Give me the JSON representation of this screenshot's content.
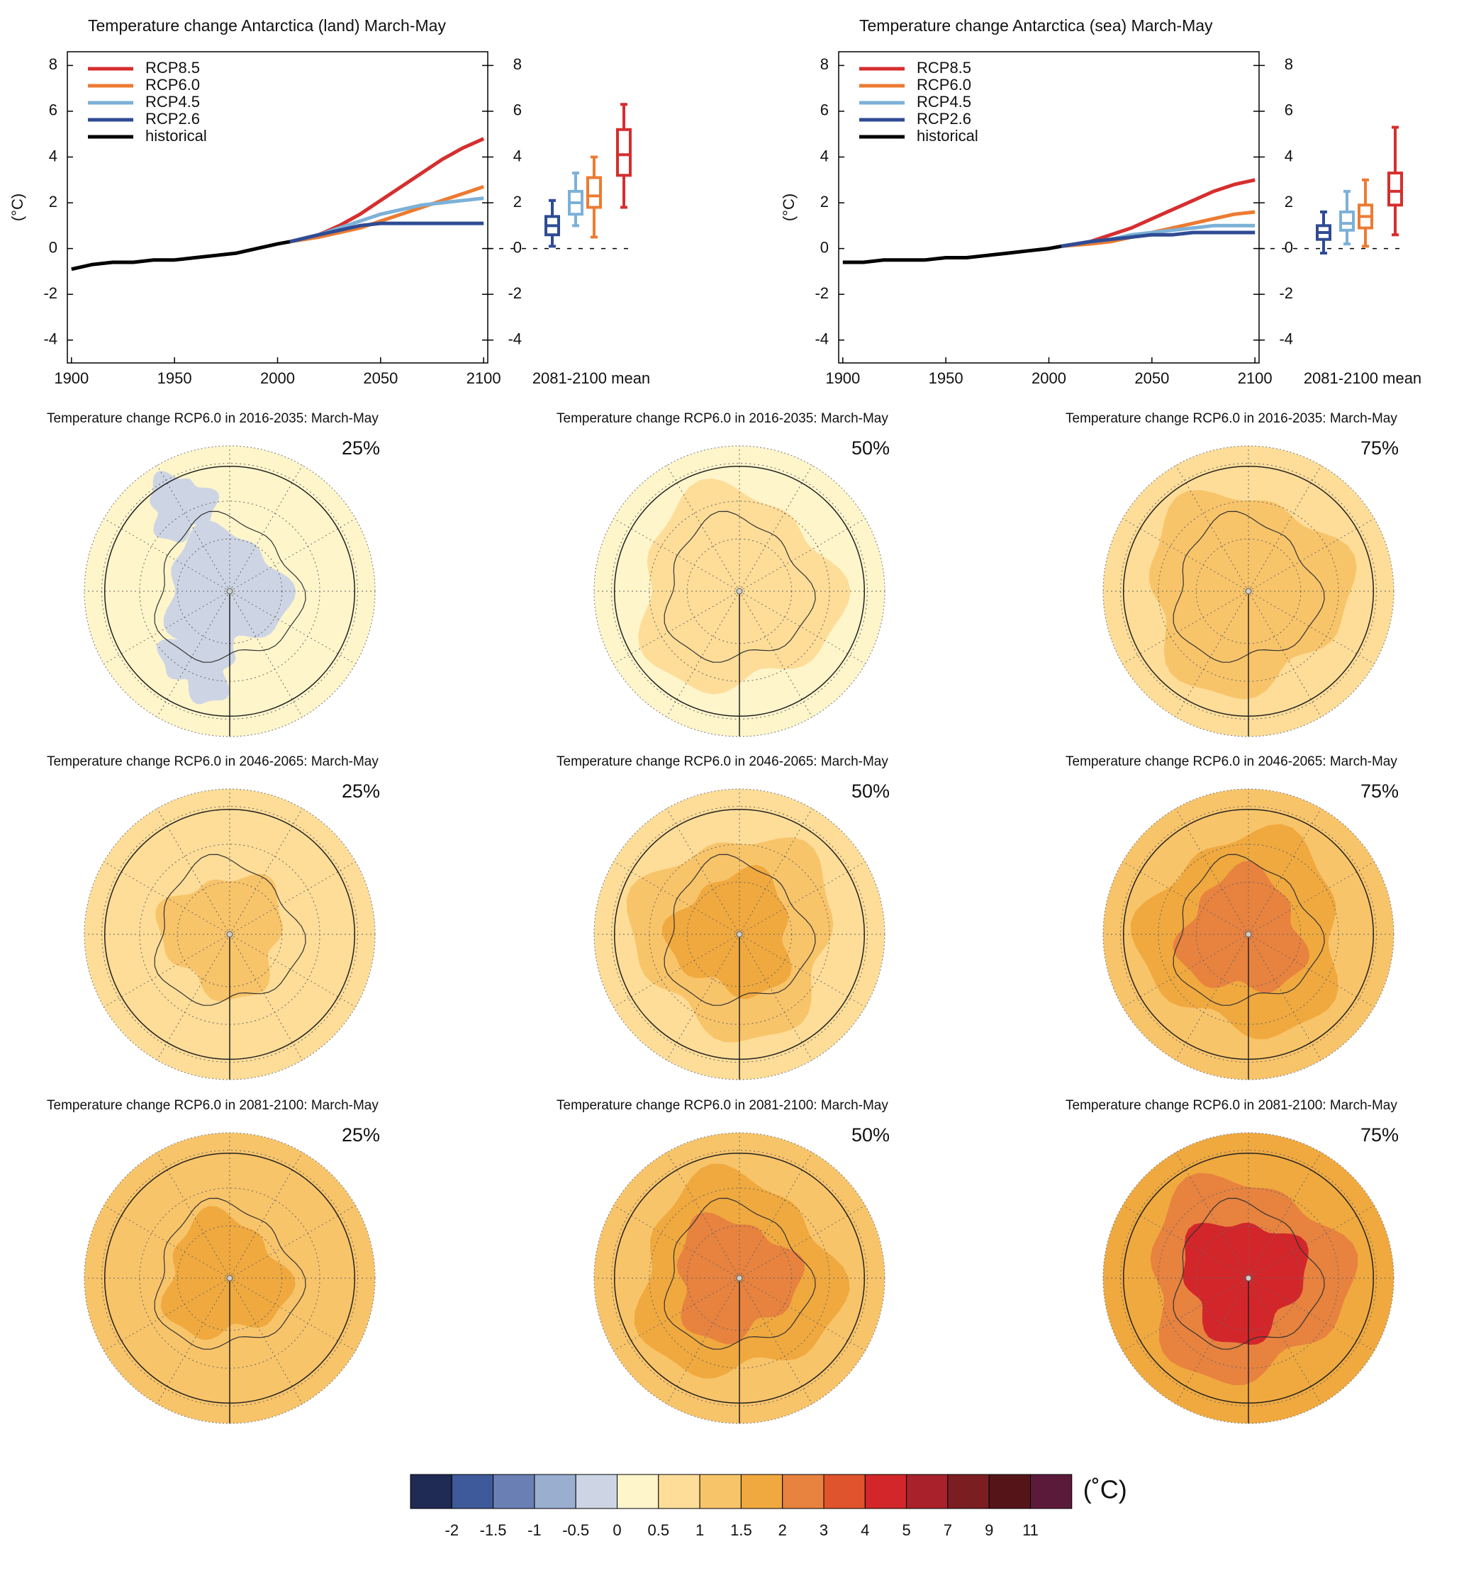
{
  "chart_data": [
    {
      "type": "line",
      "title": "Temperature change Antarctica (land) March-May",
      "y_label": "(°C)",
      "box_label": "2081-2100 mean",
      "x": [
        1900,
        1910,
        1920,
        1930,
        1940,
        1950,
        1960,
        1970,
        1980,
        1990,
        2000,
        2006,
        2020,
        2030,
        2040,
        2050,
        2060,
        2070,
        2080,
        2090,
        2100
      ],
      "xlim": [
        1898,
        2102
      ],
      "xticks": [
        1900,
        1950,
        2000,
        2050,
        2100
      ],
      "ylim": [
        -5,
        8.6
      ],
      "yticks": [
        -4,
        -2,
        0,
        2,
        4,
        6,
        8
      ],
      "y2lim": [
        -5,
        8.6
      ],
      "y2ticks": [
        -4,
        -2,
        0,
        2,
        4,
        6,
        8
      ],
      "series": [
        {
          "name": "RCP8.5",
          "color": "#d62e2e",
          "values": [
            null,
            null,
            null,
            null,
            null,
            null,
            null,
            null,
            null,
            null,
            null,
            0.3,
            0.6,
            1.0,
            1.5,
            2.1,
            2.7,
            3.3,
            3.9,
            4.4,
            4.8
          ]
        },
        {
          "name": "RCP6.0",
          "color": "#ec7b32",
          "values": [
            null,
            null,
            null,
            null,
            null,
            null,
            null,
            null,
            null,
            null,
            null,
            0.3,
            0.5,
            0.7,
            0.9,
            1.2,
            1.5,
            1.8,
            2.1,
            2.4,
            2.7
          ]
        },
        {
          "name": "RCP4.5",
          "color": "#7cb1d8",
          "values": [
            null,
            null,
            null,
            null,
            null,
            null,
            null,
            null,
            null,
            null,
            null,
            0.3,
            0.6,
            0.9,
            1.2,
            1.5,
            1.7,
            1.9,
            2.0,
            2.1,
            2.2
          ]
        },
        {
          "name": "RCP2.6",
          "color": "#2f4b94",
          "values": [
            null,
            null,
            null,
            null,
            null,
            null,
            null,
            null,
            null,
            null,
            null,
            0.3,
            0.6,
            0.8,
            1.0,
            1.1,
            1.1,
            1.1,
            1.1,
            1.1,
            1.1
          ]
        },
        {
          "name": "historical",
          "color": "#000000",
          "values": [
            -0.9,
            -0.7,
            -0.6,
            -0.6,
            -0.5,
            -0.5,
            -0.4,
            -0.3,
            -0.2,
            0.0,
            0.2,
            0.3,
            null,
            null,
            null,
            null,
            null,
            null,
            null,
            null,
            null
          ]
        }
      ],
      "boxes": {
        "colors": [
          "#2f4b94",
          "#7cb1d8",
          "#ec7b32",
          "#d62e2e"
        ],
        "lower": [
          0.1,
          1.0,
          0.5,
          1.8
        ],
        "q1": [
          0.6,
          1.5,
          1.8,
          3.2
        ],
        "median": [
          1.0,
          2.0,
          2.3,
          4.1
        ],
        "q3": [
          1.4,
          2.5,
          3.1,
          5.2
        ],
        "upper": [
          2.1,
          3.3,
          4.0,
          6.3
        ]
      }
    },
    {
      "type": "line",
      "title": "Temperature change Antarctica (sea) March-May",
      "y_label": "(°C)",
      "box_label": "2081-2100 mean",
      "x": [
        1900,
        1910,
        1920,
        1930,
        1940,
        1950,
        1960,
        1970,
        1980,
        1990,
        2000,
        2006,
        2020,
        2030,
        2040,
        2050,
        2060,
        2070,
        2080,
        2090,
        2100
      ],
      "xlim": [
        1898,
        2102
      ],
      "xticks": [
        1900,
        1950,
        2000,
        2050,
        2100
      ],
      "ylim": [
        -5,
        8.6
      ],
      "yticks": [
        -4,
        -2,
        0,
        2,
        4,
        6,
        8
      ],
      "y2lim": [
        -5,
        8.6
      ],
      "y2ticks": [
        -4,
        -2,
        0,
        2,
        4,
        6,
        8
      ],
      "series": [
        {
          "name": "RCP8.5",
          "color": "#d62e2e",
          "values": [
            null,
            null,
            null,
            null,
            null,
            null,
            null,
            null,
            null,
            null,
            null,
            0.1,
            0.3,
            0.6,
            0.9,
            1.3,
            1.7,
            2.1,
            2.5,
            2.8,
            3.0
          ]
        },
        {
          "name": "RCP6.0",
          "color": "#ec7b32",
          "values": [
            null,
            null,
            null,
            null,
            null,
            null,
            null,
            null,
            null,
            null,
            null,
            0.1,
            0.2,
            0.3,
            0.5,
            0.7,
            0.9,
            1.1,
            1.3,
            1.5,
            1.6
          ]
        },
        {
          "name": "RCP4.5",
          "color": "#7cb1d8",
          "values": [
            null,
            null,
            null,
            null,
            null,
            null,
            null,
            null,
            null,
            null,
            null,
            0.1,
            0.3,
            0.4,
            0.6,
            0.7,
            0.8,
            0.9,
            1.0,
            1.0,
            1.0
          ]
        },
        {
          "name": "RCP2.6",
          "color": "#2f4b94",
          "values": [
            null,
            null,
            null,
            null,
            null,
            null,
            null,
            null,
            null,
            null,
            null,
            0.1,
            0.3,
            0.4,
            0.5,
            0.6,
            0.6,
            0.7,
            0.7,
            0.7,
            0.7
          ]
        },
        {
          "name": "historical",
          "color": "#000000",
          "values": [
            -0.6,
            -0.6,
            -0.5,
            -0.5,
            -0.5,
            -0.4,
            -0.4,
            -0.3,
            -0.2,
            -0.1,
            0.0,
            0.1,
            null,
            null,
            null,
            null,
            null,
            null,
            null,
            null,
            null
          ]
        }
      ],
      "boxes": {
        "colors": [
          "#2f4b94",
          "#7cb1d8",
          "#ec7b32",
          "#d62e2e"
        ],
        "lower": [
          -0.2,
          0.2,
          0.1,
          0.6
        ],
        "q1": [
          0.4,
          0.8,
          0.9,
          1.9
        ],
        "median": [
          0.7,
          1.1,
          1.4,
          2.5
        ],
        "q3": [
          1.0,
          1.6,
          1.9,
          3.3
        ],
        "upper": [
          1.6,
          2.5,
          3.0,
          5.3
        ]
      }
    },
    {
      "type": "map",
      "title": "Temperature change RCP6.0 in 2016-2035: March-May",
      "subtitle": "25%"
    },
    {
      "type": "map",
      "title": "Temperature change RCP6.0 in 2016-2035: March-May",
      "subtitle": "50%"
    },
    {
      "type": "map",
      "title": "Temperature change RCP6.0 in 2016-2035: March-May",
      "subtitle": "75%"
    },
    {
      "type": "map",
      "title": "Temperature change RCP6.0 in 2046-2065: March-May",
      "subtitle": "25%"
    },
    {
      "type": "map",
      "title": "Temperature change RCP6.0 in 2046-2065: March-May",
      "subtitle": "50%"
    },
    {
      "type": "map",
      "title": "Temperature change RCP6.0 in 2046-2065: March-May",
      "subtitle": "75%"
    },
    {
      "type": "map",
      "title": "Temperature change RCP6.0 in 2081-2100: March-May",
      "subtitle": "25%"
    },
    {
      "type": "map",
      "title": "Temperature change RCP6.0 in 2081-2100: March-May",
      "subtitle": "50%"
    },
    {
      "type": "map",
      "title": "Temperature change RCP6.0 in 2081-2100: March-May",
      "subtitle": "75%"
    },
    {
      "type": "colorbar",
      "unit": "(˚C)",
      "colors": [
        "#1f2a55",
        "#3e5a9a",
        "#6a80b4",
        "#9aaed0",
        "#cdd5e4",
        "#fff5cb",
        "#fddd98",
        "#f8c46a",
        "#f0a93f",
        "#e7823f",
        "#df532d",
        "#d3262a",
        "#a9212a",
        "#7b1e22",
        "#551518",
        "#5c1a3a"
      ],
      "ticks": [
        -2,
        -1.5,
        -1,
        -0.5,
        0,
        0.5,
        1,
        1.5,
        2,
        3,
        4,
        5,
        7,
        9,
        11
      ]
    }
  ]
}
